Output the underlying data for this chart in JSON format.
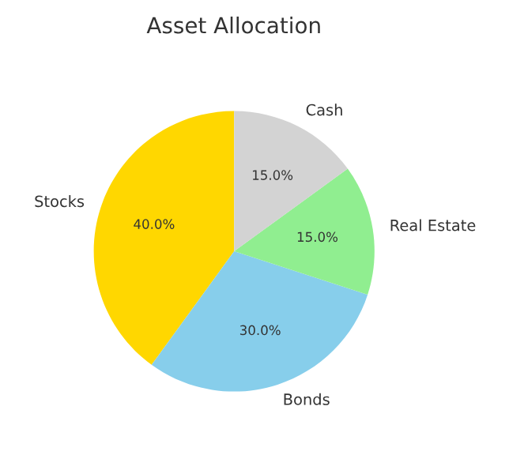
{
  "chart_data": {
    "type": "pie",
    "title": "Asset Allocation",
    "categories": [
      "Stocks",
      "Bonds",
      "Real Estate",
      "Cash"
    ],
    "values": [
      40,
      30,
      15,
      15
    ],
    "value_labels": [
      "40.0%",
      "30.0%",
      "15.0%",
      "15.0%"
    ],
    "colors": [
      "#ffd700",
      "#87ceeb",
      "#90ee90",
      "#d3d3d3"
    ]
  }
}
